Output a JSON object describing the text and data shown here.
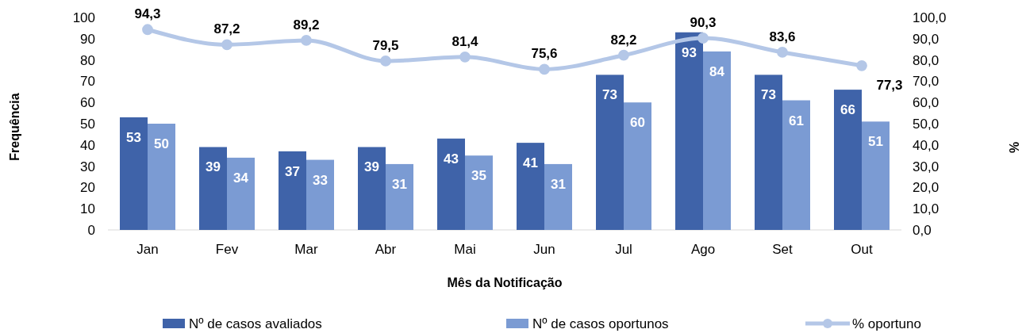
{
  "chart_data": {
    "type": "bar",
    "xlabel": "Mês da Notificação",
    "ylabel": "Frequência",
    "y2label": "%",
    "categories": [
      "Jan",
      "Fev",
      "Mar",
      "Abr",
      "Mai",
      "Jun",
      "Jul",
      "Ago",
      "Set",
      "Out"
    ],
    "series": [
      {
        "name": "Nº de casos avaliados",
        "color": "#3f63a9",
        "values": [
          53,
          39,
          37,
          39,
          43,
          41,
          73,
          93,
          73,
          66
        ]
      },
      {
        "name": "Nº de casos oportunos",
        "color": "#7b9bd3",
        "values": [
          50,
          34,
          33,
          31,
          35,
          31,
          60,
          84,
          61,
          51
        ]
      },
      {
        "name": "% oportuno",
        "type": "line",
        "axis": "y2",
        "color": "#b4c7e7",
        "marker": "circle",
        "values": [
          94.3,
          87.2,
          89.2,
          79.5,
          81.4,
          75.6,
          82.2,
          90.3,
          83.6,
          77.3
        ],
        "value_labels": [
          "94,3",
          "87,2",
          "89,2",
          "79,5",
          "81,4",
          "75,6",
          "82,2",
          "90,3",
          "83,6",
          "77,3"
        ]
      }
    ],
    "ylim": [
      0,
      100
    ],
    "yticks": [
      0,
      10,
      20,
      30,
      40,
      50,
      60,
      70,
      80,
      90,
      100
    ],
    "y2lim": [
      0,
      100
    ],
    "y2ticks": [
      {
        "value": 0,
        "label": "0,0"
      },
      {
        "value": 10,
        "label": "10,0"
      },
      {
        "value": 20,
        "label": "20,0"
      },
      {
        "value": 30,
        "label": "30,0"
      },
      {
        "value": 40,
        "label": "40,0"
      },
      {
        "value": 50,
        "label": "50,0"
      },
      {
        "value": 60,
        "label": "60,0"
      },
      {
        "value": 70,
        "label": "70,0"
      },
      {
        "value": 80,
        "label": "80,0"
      },
      {
        "value": 90,
        "label": "90,0"
      },
      {
        "value": 100,
        "label": "100,0"
      }
    ],
    "data_labels": true,
    "legend": "bottom",
    "grid": false
  }
}
